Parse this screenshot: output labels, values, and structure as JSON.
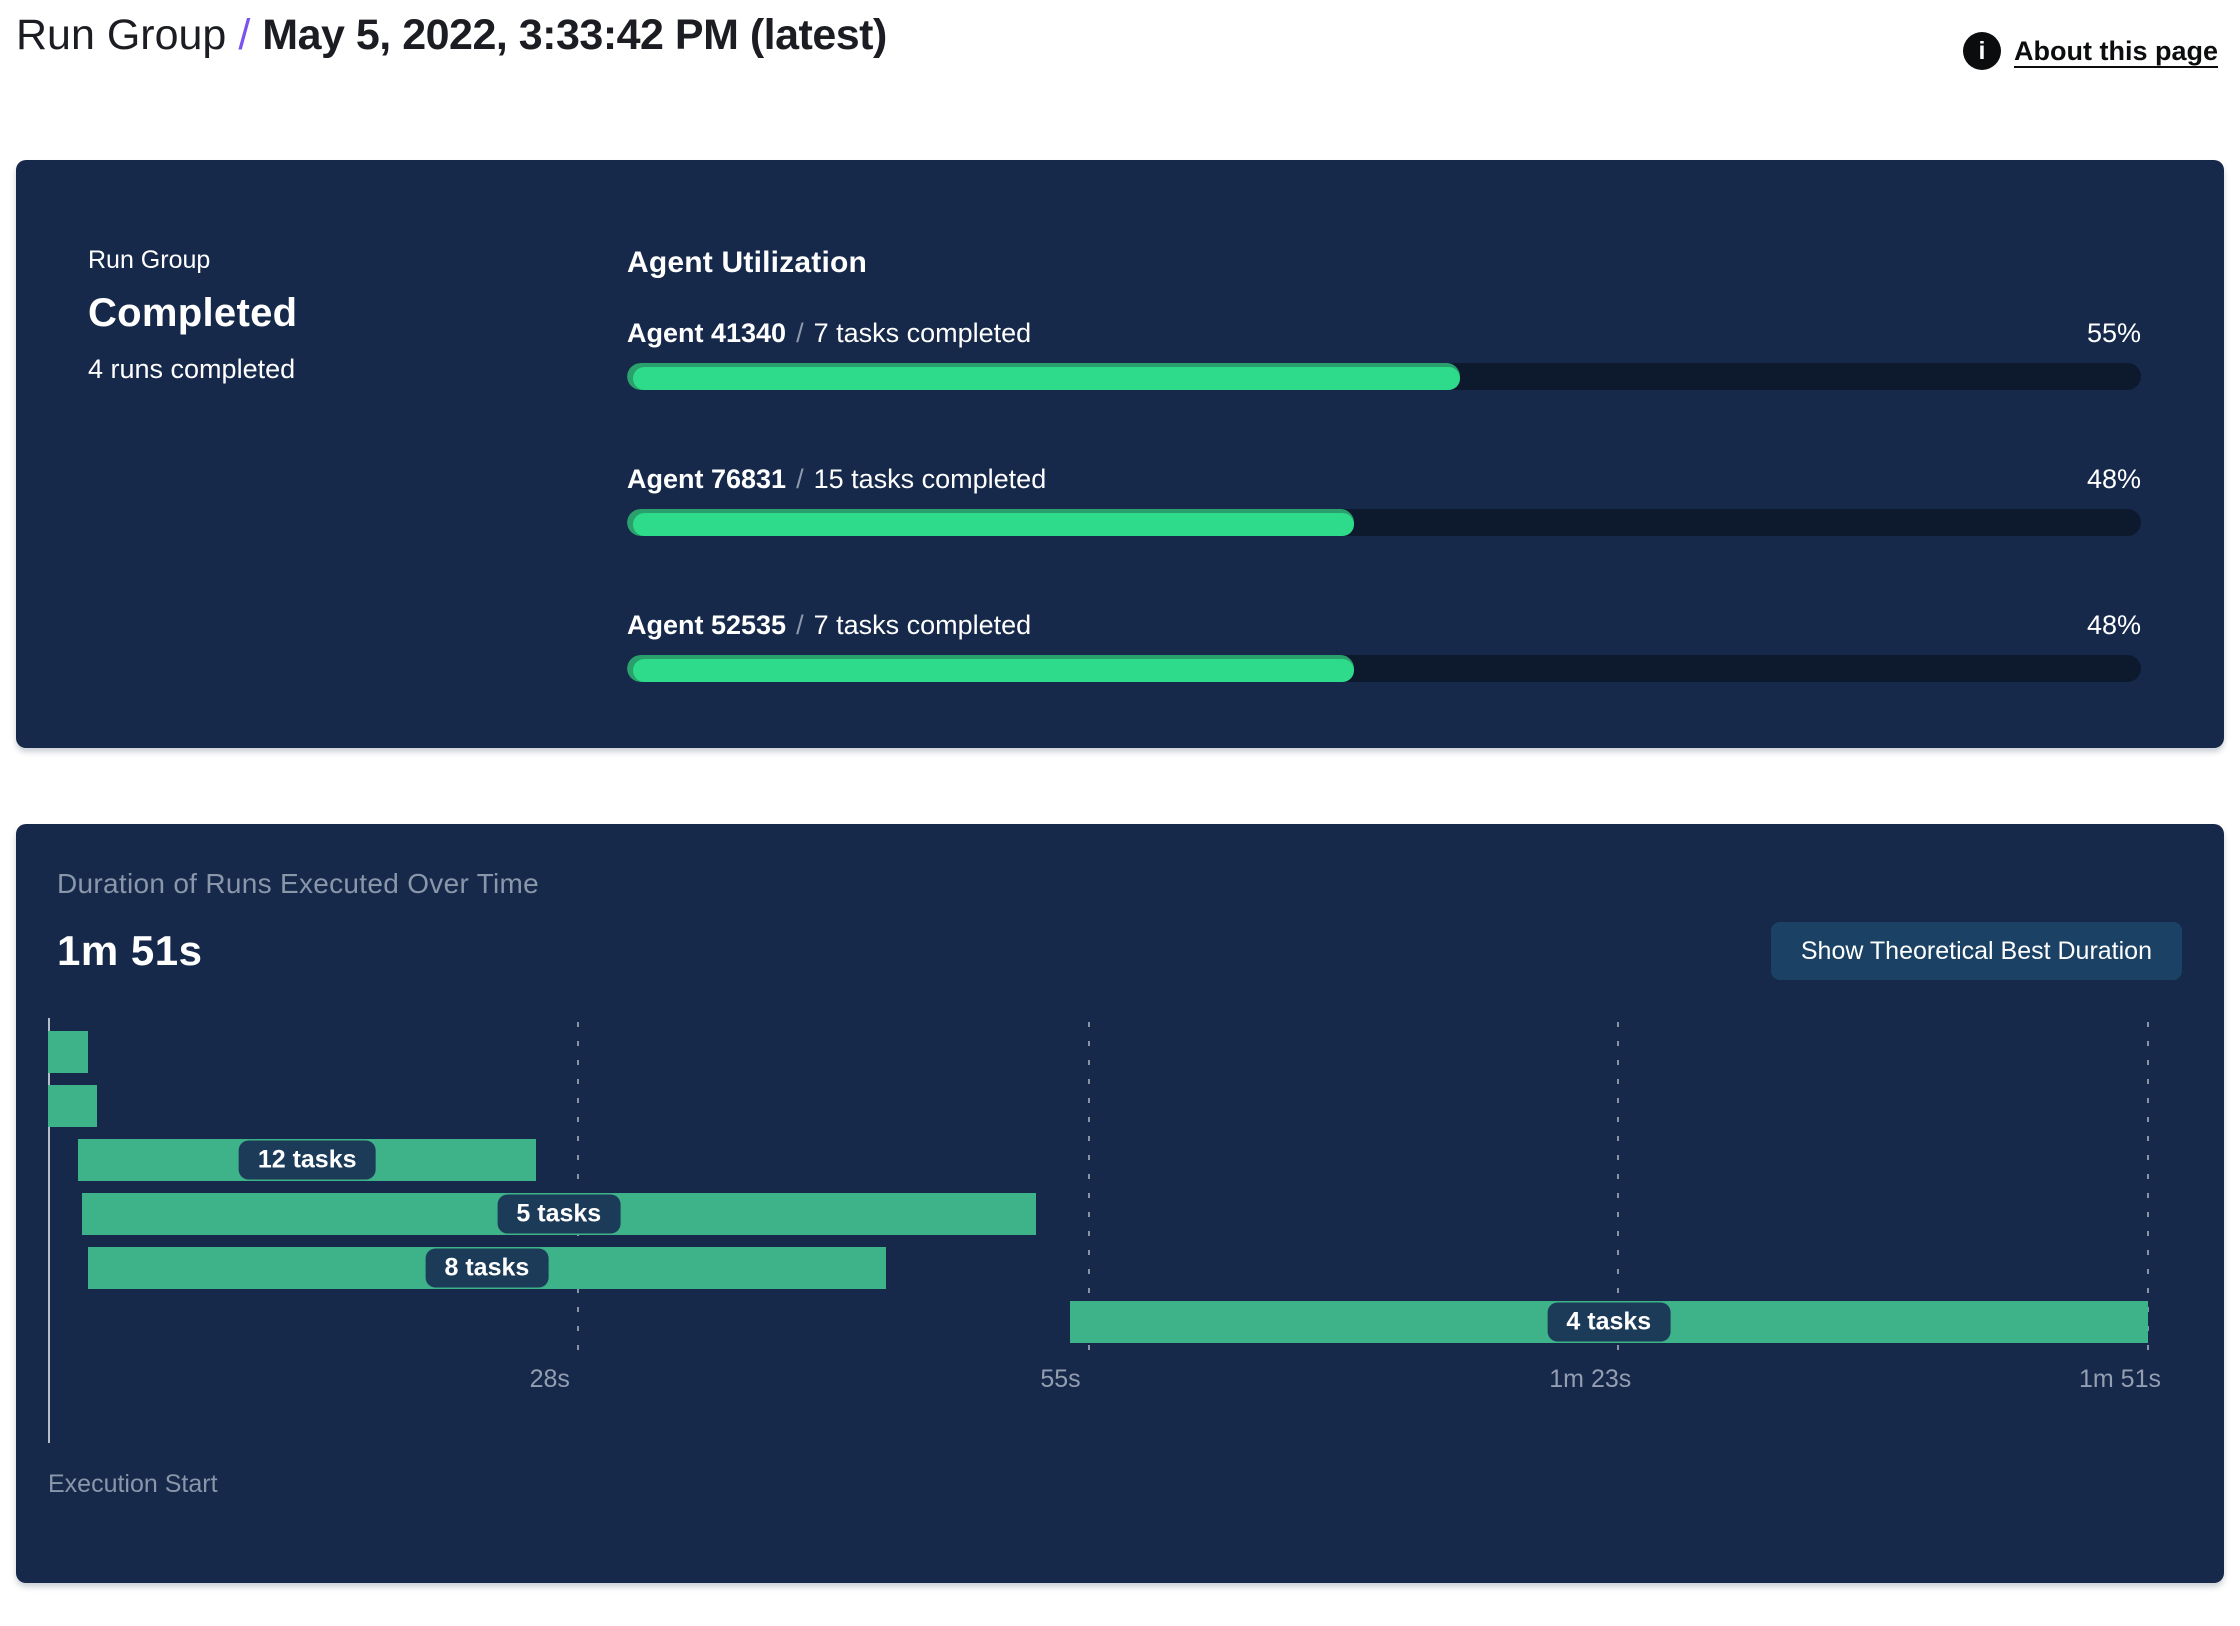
{
  "header": {
    "breadcrumb": "Run Group",
    "separator": "/",
    "title": "May 5, 2022, 3:33:42 PM (latest)",
    "about_link": "About this page"
  },
  "run_summary": {
    "panel_label": "Run Group",
    "status": "Completed",
    "runs_completed": "4 runs completed"
  },
  "agent_utilization": {
    "title": "Agent Utilization",
    "separator": "/",
    "agents": [
      {
        "name": "Agent 41340",
        "tasks_completed": "7 tasks completed",
        "utilization_pct": 55
      },
      {
        "name": "Agent 76831",
        "tasks_completed": "15 tasks completed",
        "utilization_pct": 48
      },
      {
        "name": "Agent 52535",
        "tasks_completed": "7 tasks completed",
        "utilization_pct": 48
      }
    ]
  },
  "duration_section": {
    "title": "Duration of Runs Executed Over Time",
    "total_duration": "1m 51s",
    "button_label": "Show Theoretical Best Duration",
    "execution_start_label": "Execution Start"
  },
  "chart_data": {
    "type": "bar",
    "orientation": "horizontal-gantt",
    "title": "Duration of Runs Executed Over Time",
    "x_unit": "seconds",
    "x_range": [
      0,
      111
    ],
    "gridlines": "dashed-vertical",
    "legend": false,
    "ticks": [
      {
        "t": 28,
        "label": "28s"
      },
      {
        "t": 55,
        "label": "55s"
      },
      {
        "t": 83,
        "label": "1m 23s"
      },
      {
        "t": 111,
        "label": "1m 51s"
      }
    ],
    "runs": [
      {
        "start_s": 0,
        "end_s": 2.1,
        "label": ""
      },
      {
        "start_s": 0,
        "end_s": 2.6,
        "label": ""
      },
      {
        "start_s": 1.6,
        "end_s": 25.8,
        "label": "12 tasks"
      },
      {
        "start_s": 1.8,
        "end_s": 52.2,
        "label": "5 tasks"
      },
      {
        "start_s": 2.1,
        "end_s": 44.3,
        "label": "8 tasks"
      },
      {
        "start_s": 54.0,
        "end_s": 111.0,
        "label": "4 tasks"
      }
    ]
  },
  "colors": {
    "panel_bg": "#16294a",
    "track_bg": "#0d1a2e",
    "progress_fill": "#2ddb8b",
    "progress_fill_edge": "#2aa06c",
    "gantt_bar": "#3eb389",
    "pill_bg": "#1c3b59",
    "button_bg": "#1b4265",
    "muted_text": "#8a96a9",
    "accent_purple": "#7b52ee"
  }
}
